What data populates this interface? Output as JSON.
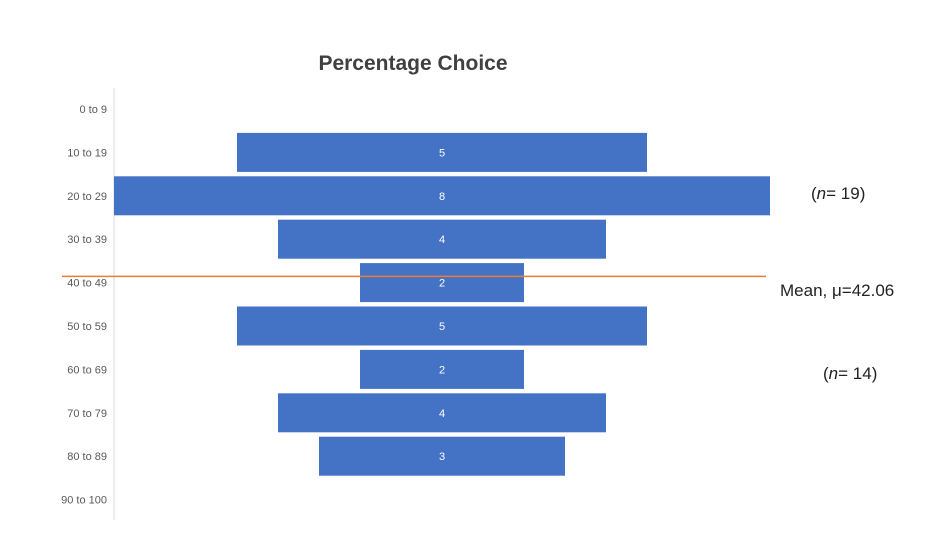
{
  "chart_data": {
    "type": "bar",
    "orientation": "horizontal-centered",
    "title": "Percentage Choice",
    "categories": [
      "0 to 9",
      "10 to 19",
      "20 to 29",
      "30 to 39",
      "40 to 49",
      "50 to 59",
      "60 to 69",
      "70 to 79",
      "80 to 89",
      "90 to 100"
    ],
    "values": [
      0,
      5,
      8,
      4,
      2,
      5,
      2,
      4,
      3,
      0
    ],
    "bar_color": "#4472C4",
    "mean": {
      "label": "Mean, μ=42.06",
      "value": 42.06,
      "color": "#ED7D31"
    },
    "annotations": [
      {
        "label_n": "n",
        "label_rest": "= 19",
        "prefix": "(",
        "suffix": ")"
      },
      {
        "label_n": "n",
        "label_rest": "= 14",
        "prefix": "(",
        "suffix": ")"
      }
    ],
    "grid": false,
    "legend": "none"
  }
}
